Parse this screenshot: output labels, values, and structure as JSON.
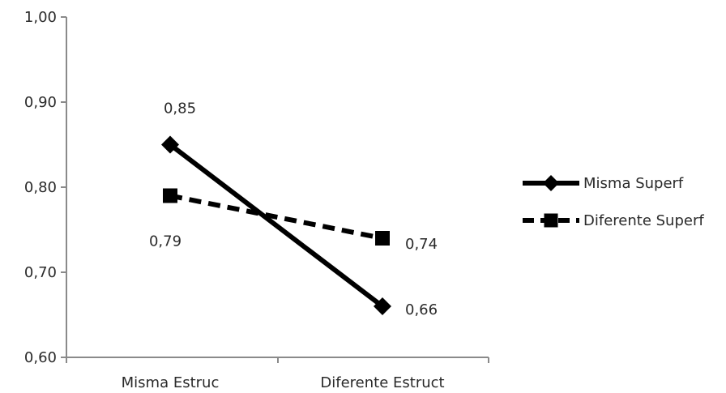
{
  "chart_data": {
    "type": "line",
    "categories": [
      "Misma Estruc",
      "Diferente Estruct"
    ],
    "series": [
      {
        "name": "Misma Superf",
        "values": [
          0.85,
          0.66
        ],
        "labels": [
          "0,85",
          "0,66"
        ],
        "line_style": "solid",
        "marker": "diamond",
        "color": "#000000"
      },
      {
        "name": "Diferente Superf",
        "values": [
          0.79,
          0.74
        ],
        "labels": [
          "0,79",
          "0,74"
        ],
        "line_style": "dashed",
        "marker": "square",
        "color": "#000000"
      }
    ],
    "ylim": [
      0.6,
      1.0
    ],
    "yticks": [
      1.0,
      0.9,
      0.8,
      0.7,
      0.6
    ],
    "ytick_labels": [
      "1,00",
      "0,90",
      "0,80",
      "0,70",
      "0,60"
    ],
    "title": "",
    "xlabel": "",
    "ylabel": "",
    "grid": false,
    "legend_position": "right"
  }
}
